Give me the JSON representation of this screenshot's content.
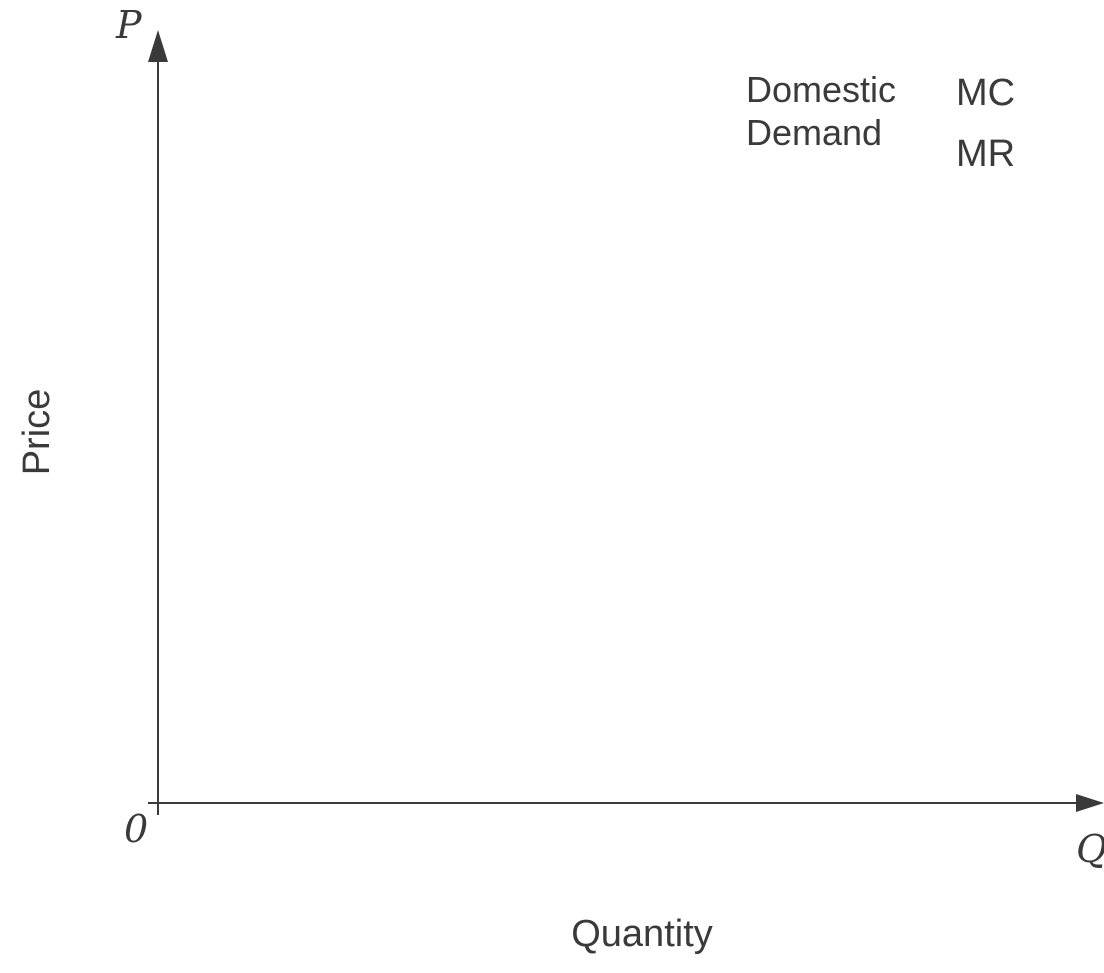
{
  "diagram": {
    "y_axis": {
      "symbol": "P",
      "title": "Price"
    },
    "x_axis": {
      "symbol": "Q",
      "title": "Quantity"
    },
    "origin_label": "0",
    "labels": {
      "domestic_demand_line1": "Domestic",
      "domestic_demand_line2": "Demand",
      "mc": "MC",
      "mr": "MR"
    }
  }
}
